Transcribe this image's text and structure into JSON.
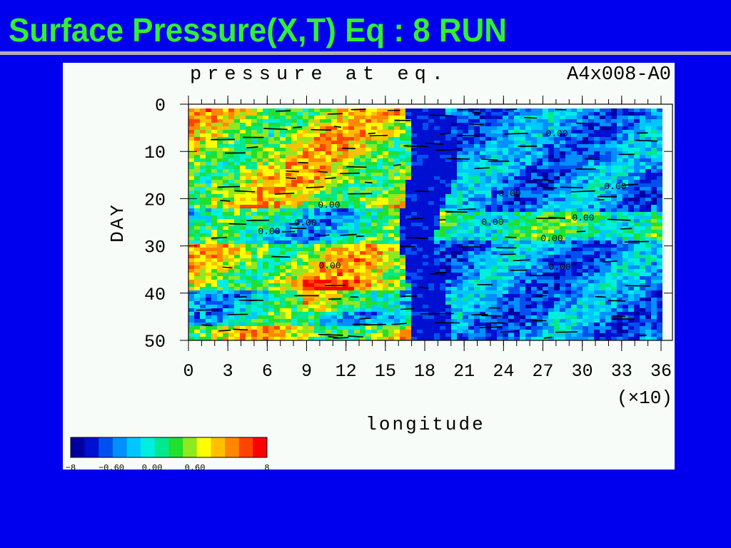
{
  "header": {
    "title": "Surface Pressure(X,T) Eq  : 8 RUN"
  },
  "plot": {
    "title": "pressure at eq.",
    "run": "A4x008-A0",
    "y_label": "DAY",
    "x_label": "longitude",
    "x_unit": "(×10)",
    "y_ticks": [
      0,
      10,
      20,
      30,
      40,
      50
    ],
    "x_ticks": [
      0,
      3,
      6,
      9,
      12,
      15,
      18,
      21,
      24,
      27,
      30,
      33,
      36
    ],
    "contour_labels": [
      "0.00",
      "0.00",
      "0.00",
      "0.00",
      "0.00",
      "0.00",
      "0.00",
      "0.00",
      "0.00",
      "0.00",
      "0.00"
    ],
    "colorbar_labels": [
      "−8",
      "−0.60",
      "0.00",
      "0.60",
      "8"
    ]
  }
}
